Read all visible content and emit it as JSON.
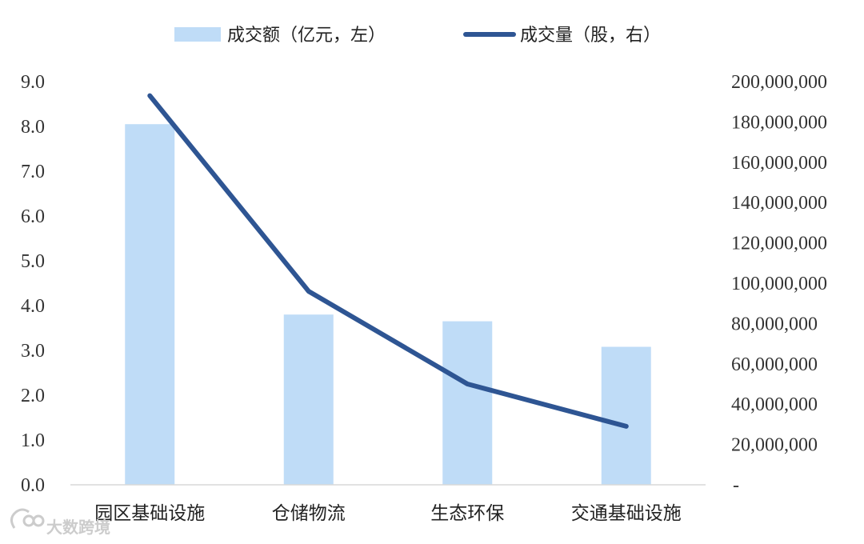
{
  "chart_data": {
    "type": "bar+line",
    "categories": [
      "园区基础设施",
      "仓储物流",
      "生态环保",
      "交通基础设施"
    ],
    "series": [
      {
        "name": "成交额（亿元，左）",
        "type": "bar",
        "axis": "left",
        "values": [
          8.05,
          3.8,
          3.65,
          3.08
        ],
        "color": "#bfdcf7"
      },
      {
        "name": "成交量（股，右）",
        "type": "line",
        "axis": "right",
        "values": [
          193000000,
          96000000,
          50000000,
          29000000
        ],
        "color": "#2e5593"
      }
    ],
    "left_axis": {
      "min": 0,
      "max": 9,
      "step": 1,
      "tick_labels": [
        "0.0",
        "1.0",
        "2.0",
        "3.0",
        "4.0",
        "5.0",
        "6.0",
        "7.0",
        "8.0",
        "9.0"
      ]
    },
    "right_axis": {
      "min": 0,
      "max": 200000000,
      "step": 20000000,
      "tick_labels": [
        "-",
        "20,000,000",
        "40,000,000",
        "60,000,000",
        "80,000,000",
        "100,000,000",
        "120,000,000",
        "140,000,000",
        "160,000,000",
        "180,000,000",
        "200,000,000"
      ]
    },
    "legend_position": "top-center",
    "grid": false
  },
  "watermark": {
    "text": "大数跨境",
    "icon": "watermark-logo-icon"
  }
}
